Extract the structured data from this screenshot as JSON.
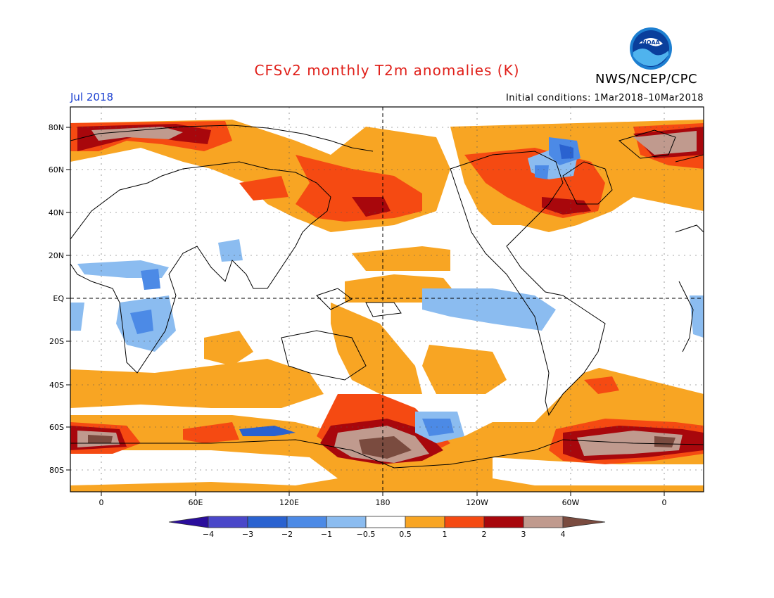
{
  "title": "CFSv2 monthly T2m anomalies (K)",
  "agency": "NWS/NCEP/CPC",
  "logo_text": "NOAA",
  "month": "Jul 2018",
  "initial_conditions": "Initial conditions: 1Mar2018–10Mar2018",
  "lat_labels": [
    "80N",
    "60N",
    "40N",
    "20N",
    "EQ",
    "20S",
    "40S",
    "60S",
    "80S"
  ],
  "lon_labels": [
    "0",
    "60E",
    "120E",
    "180",
    "120W",
    "60W",
    "0"
  ],
  "colorbar": {
    "labels": [
      "−4",
      "−3",
      "−2",
      "−1",
      "−0.5",
      "0.5",
      "1",
      "2",
      "3",
      "4"
    ],
    "colors": {
      "lt4": "#2a0d9c",
      "m4_m3": "#4a47c9",
      "m3_m2": "#2a62d0",
      "m2_m1": "#4c8ae6",
      "m1_m05": "#8bbcf0",
      "m05_05": "#ffffff",
      "05_1": "#f8a523",
      "1_2": "#f54a12",
      "2_3": "#a8070c",
      "3_4": "#c09a8e",
      "gt4": "#7a4b3f"
    }
  }
}
